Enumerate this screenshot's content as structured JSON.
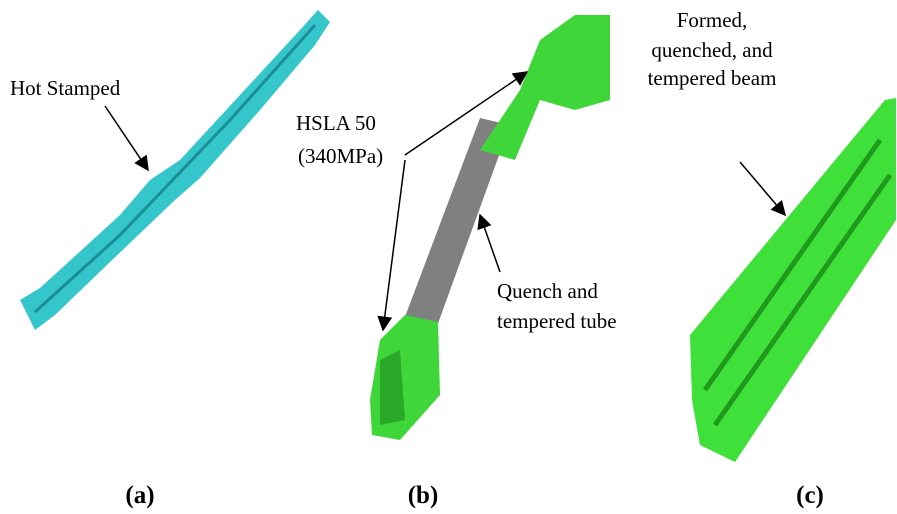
{
  "panels": [
    {
      "label": "(a)",
      "annotations": [
        "Hot Stamped"
      ]
    },
    {
      "label": "(b)",
      "annotations": [
        "HSLA 50",
        "(340MPa)",
        "Quench and",
        "tempered tube"
      ]
    },
    {
      "label": "(c)",
      "annotations": [
        "Formed,",
        "quenched, and",
        "tempered beam"
      ]
    }
  ]
}
